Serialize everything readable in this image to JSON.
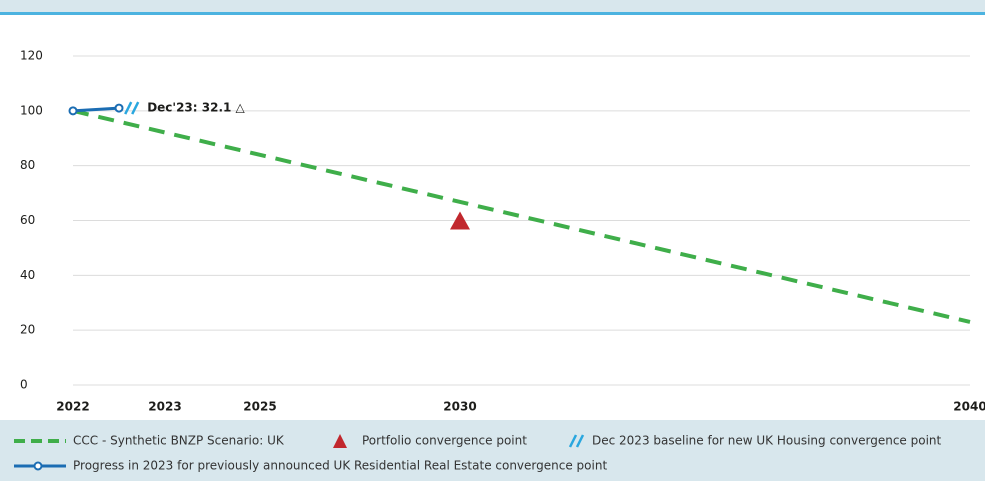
{
  "chart_data": {
    "type": "line",
    "xlim": [
      2022,
      2040
    ],
    "xticks": [
      2022,
      2023,
      2025,
      2030,
      2040
    ],
    "ylim": [
      0,
      120
    ],
    "yticks": [
      0,
      20,
      40,
      60,
      80,
      100,
      120
    ],
    "grid": true,
    "series": [
      {
        "name": "CCC - Synthetic BNZP Scenario: UK",
        "color": "#3fae4a",
        "x": [
          2022,
          2040
        ],
        "values": [
          100,
          23
        ]
      },
      {
        "name": "Progress in 2023 for previously announced UK Residential Real Estate convergence point",
        "color": "#1b6db3",
        "x": [
          2022,
          2022.5
        ],
        "values": [
          100,
          101
        ]
      }
    ],
    "portfolio_point": {
      "name": "Portfolio convergence point",
      "color": "#c1272d",
      "x": 2030,
      "value": 60
    },
    "baseline_marker": {
      "name": "Dec 2023 baseline for new UK Housing convergence point",
      "color": "#2aa7df",
      "x": 2022.6,
      "value": 101
    },
    "annotation": "Dec'23: 32.1 △"
  }
}
